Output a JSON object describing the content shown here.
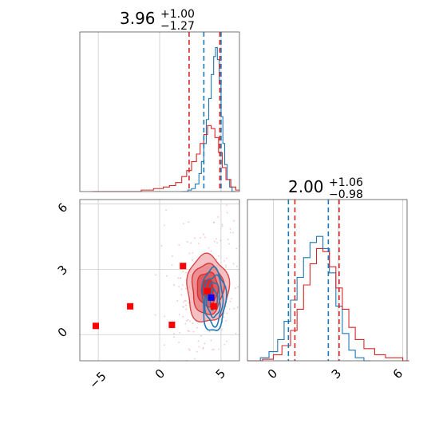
{
  "chart_data": [
    {
      "panel": "marginal-x",
      "type": "histogram",
      "title": "3.96",
      "title_plus": "+1.00",
      "title_minus": "−1.27",
      "xlim": [
        -6.5,
        6.5
      ],
      "grid": true,
      "quantile_lines": {
        "blue": [
          3.6,
          5.0
        ],
        "red": [
          2.4,
          4.9
        ]
      },
      "series": [
        {
          "color": "#1f77b4",
          "bins": [
            [
              1.8,
              0.0
            ],
            [
              2.3,
              0.01
            ],
            [
              2.6,
              0.02
            ],
            [
              2.9,
              0.05
            ],
            [
              3.2,
              0.12
            ],
            [
              3.4,
              0.2
            ],
            [
              3.6,
              0.32
            ],
            [
              3.8,
              0.48
            ],
            [
              4.0,
              0.62
            ],
            [
              4.2,
              0.78
            ],
            [
              4.4,
              0.9
            ],
            [
              4.55,
              0.96
            ],
            [
              4.7,
              0.88
            ],
            [
              4.85,
              0.72
            ],
            [
              5.0,
              0.5
            ],
            [
              5.15,
              0.32
            ],
            [
              5.3,
              0.18
            ],
            [
              5.5,
              0.08
            ],
            [
              5.7,
              0.03
            ],
            [
              5.9,
              0.0
            ]
          ]
        },
        {
          "color": "#d62728",
          "bins": [
            [
              -5.5,
              0.0
            ],
            [
              -1.5,
              0.01
            ],
            [
              -0.5,
              0.02
            ],
            [
              0.3,
              0.03
            ],
            [
              0.8,
              0.04
            ],
            [
              1.3,
              0.06
            ],
            [
              1.8,
              0.1
            ],
            [
              2.2,
              0.14
            ],
            [
              2.6,
              0.2
            ],
            [
              3.0,
              0.25
            ],
            [
              3.3,
              0.32
            ],
            [
              3.6,
              0.38
            ],
            [
              3.9,
              0.44
            ],
            [
              4.2,
              0.42
            ],
            [
              4.5,
              0.36
            ],
            [
              4.8,
              0.26
            ],
            [
              5.1,
              0.16
            ],
            [
              5.4,
              0.08
            ],
            [
              5.8,
              0.03
            ],
            [
              6.2,
              0.01
            ]
          ]
        }
      ]
    },
    {
      "panel": "joint",
      "type": "contour-scatter",
      "xlim": [
        -6.5,
        6.5
      ],
      "ylim": [
        -1.2,
        6.2
      ],
      "x_ticks": [
        "−5",
        "0",
        "5"
      ],
      "x_tick_values": [
        -5,
        0,
        5
      ],
      "y_ticks": [
        "0",
        "3",
        "6"
      ],
      "y_tick_values": [
        0,
        3,
        6
      ],
      "grid": true,
      "red_markers": [
        [
          -5.2,
          0.4
        ],
        [
          -2.4,
          1.3
        ],
        [
          1.0,
          0.45
        ],
        [
          1.9,
          3.15
        ],
        [
          3.9,
          2.0
        ],
        [
          4.4,
          1.3
        ]
      ],
      "blue_markers": [
        [
          4.2,
          1.7
        ]
      ],
      "red_region": {
        "center": [
          3.9,
          2.1
        ],
        "spread": [
          1.7,
          1.55
        ]
      },
      "blue_region": {
        "center": [
          4.4,
          1.6
        ],
        "spread": [
          0.95,
          1.45
        ]
      }
    },
    {
      "panel": "marginal-y",
      "type": "histogram",
      "title": "2.00",
      "title_plus": "+1.06",
      "title_minus": "−0.98",
      "xlim": [
        -1.2,
        6.2
      ],
      "x_ticks": [
        "0",
        "3",
        "6"
      ],
      "x_tick_values": [
        0,
        3,
        6
      ],
      "grid": true,
      "quantile_lines": {
        "blue": [
          0.7,
          2.55
        ],
        "red": [
          1.0,
          3.05
        ]
      },
      "series": [
        {
          "color": "#1f77b4",
          "bins": [
            [
              -1.2,
              0.0
            ],
            [
              -0.6,
              0.02
            ],
            [
              -0.2,
              0.06
            ],
            [
              0.2,
              0.14
            ],
            [
              0.5,
              0.26
            ],
            [
              0.8,
              0.4
            ],
            [
              1.1,
              0.55
            ],
            [
              1.4,
              0.68
            ],
            [
              1.7,
              0.78
            ],
            [
              2.0,
              0.82
            ],
            [
              2.3,
              0.74
            ],
            [
              2.6,
              0.58
            ],
            [
              2.9,
              0.36
            ],
            [
              3.2,
              0.18
            ],
            [
              3.5,
              0.07
            ],
            [
              3.8,
              0.02
            ],
            [
              4.2,
              0.0
            ]
          ]
        },
        {
          "color": "#d62728",
          "bins": [
            [
              -1.2,
              0.0
            ],
            [
              -0.5,
              0.01
            ],
            [
              0.0,
              0.04
            ],
            [
              0.4,
              0.1
            ],
            [
              0.8,
              0.2
            ],
            [
              1.1,
              0.34
            ],
            [
              1.4,
              0.5
            ],
            [
              1.7,
              0.64
            ],
            [
              2.0,
              0.74
            ],
            [
              2.3,
              0.72
            ],
            [
              2.6,
              0.62
            ],
            [
              2.9,
              0.48
            ],
            [
              3.2,
              0.34
            ],
            [
              3.5,
              0.22
            ],
            [
              3.8,
              0.14
            ],
            [
              4.2,
              0.08
            ],
            [
              4.7,
              0.04
            ],
            [
              5.2,
              0.02
            ],
            [
              6.0,
              0.0
            ]
          ]
        }
      ]
    }
  ]
}
